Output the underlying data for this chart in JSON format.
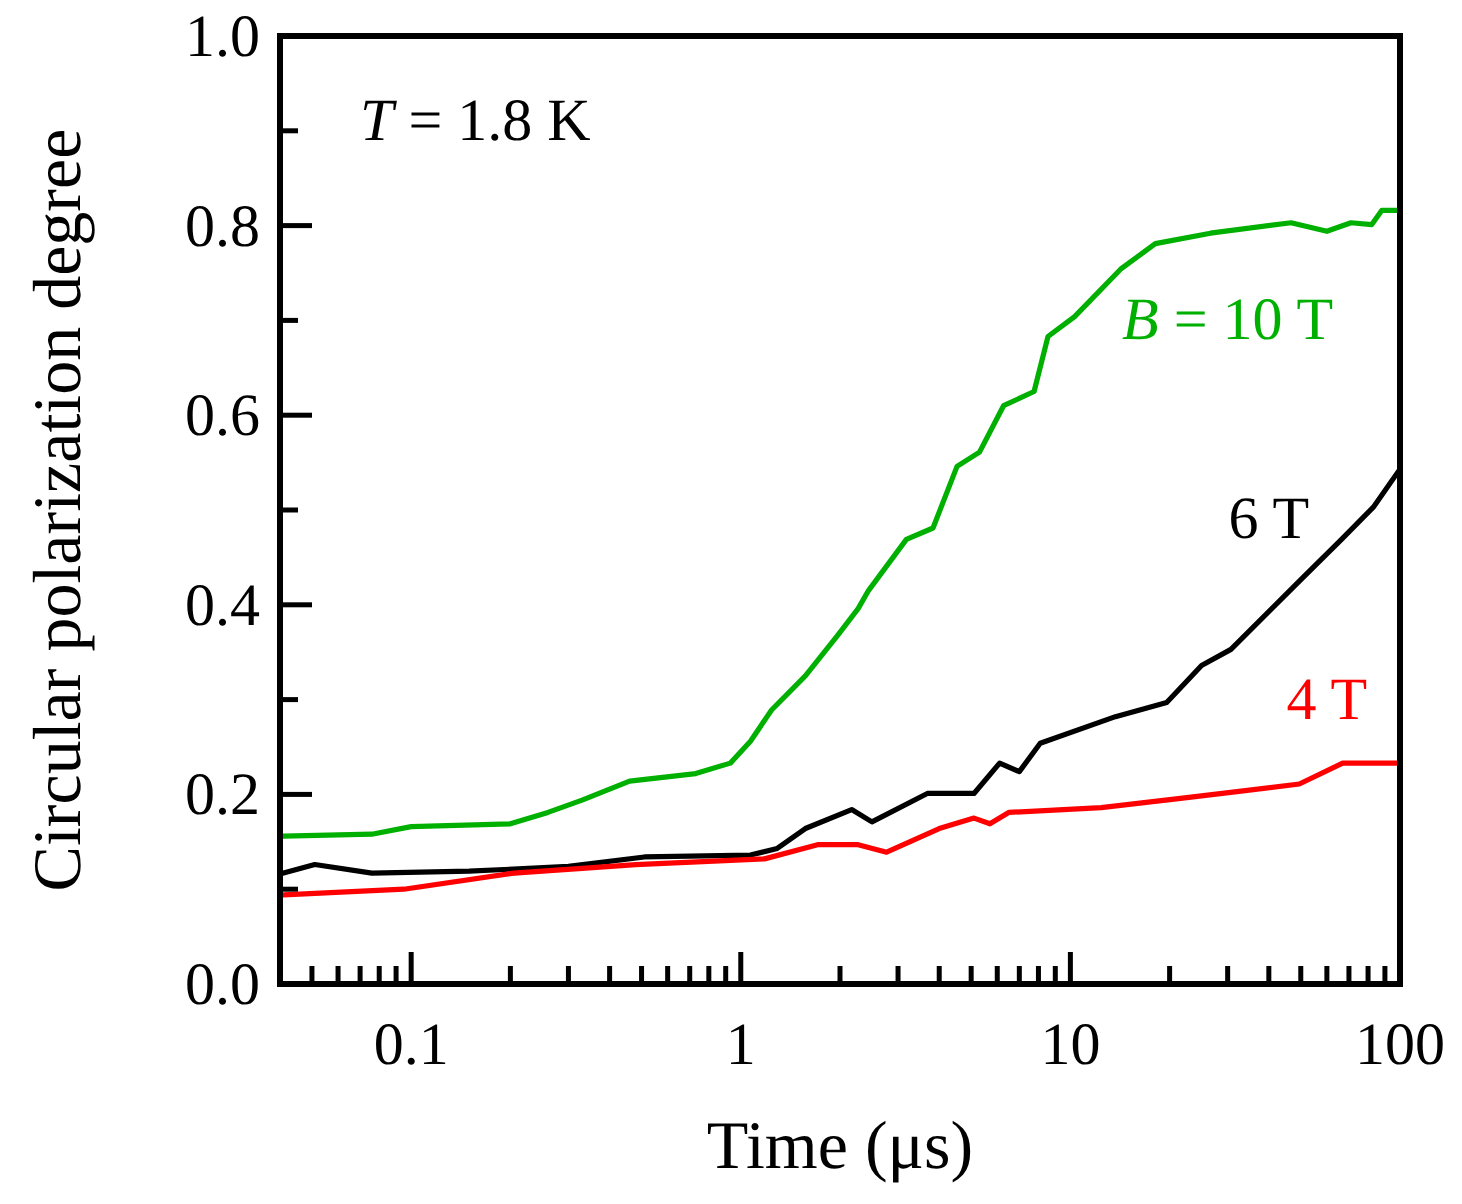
{
  "chart_data": {
    "type": "line",
    "xlabel": "Time (μs)",
    "ylabel": "Circular polarization degree",
    "log": "x",
    "xlim": [
      0.04,
      100
    ],
    "ylim": [
      0,
      1
    ],
    "xticks": [
      {
        "value": 0.04,
        "label": null
      },
      {
        "value": 0.05,
        "label": null
      },
      {
        "value": 0.06,
        "label": null
      },
      {
        "value": 0.07,
        "label": null
      },
      {
        "value": 0.08,
        "label": null
      },
      {
        "value": 0.09,
        "label": null
      },
      {
        "value": 0.1,
        "label": "0.1"
      },
      {
        "value": 0.2,
        "label": null
      },
      {
        "value": 0.3,
        "label": null
      },
      {
        "value": 0.4,
        "label": null
      },
      {
        "value": 0.5,
        "label": null
      },
      {
        "value": 0.6,
        "label": null
      },
      {
        "value": 0.7,
        "label": null
      },
      {
        "value": 0.8,
        "label": null
      },
      {
        "value": 0.9,
        "label": null
      },
      1,
      {
        "value": 2,
        "label": null
      },
      {
        "value": 3,
        "label": null
      },
      {
        "value": 4,
        "label": null
      },
      {
        "value": 5,
        "label": null
      },
      {
        "value": 6,
        "label": null
      },
      {
        "value": 7,
        "label": null
      },
      {
        "value": 8,
        "label": null
      },
      {
        "value": 9,
        "label": null
      },
      10,
      {
        "value": 20,
        "label": null
      },
      {
        "value": 30,
        "label": null
      },
      {
        "value": 40,
        "label": null
      },
      {
        "value": 50,
        "label": null
      },
      {
        "value": 60,
        "label": null
      },
      {
        "value": 70,
        "label": null
      },
      {
        "value": 80,
        "label": null
      },
      {
        "value": 90,
        "label": null
      },
      100
    ],
    "yticks": [
      {
        "value": 0,
        "label": "0.0"
      },
      {
        "value": 0.1,
        "label": null
      },
      {
        "value": 0.2,
        "label": "0.2"
      },
      {
        "value": 0.3,
        "label": null
      },
      {
        "value": 0.4,
        "label": "0.4"
      },
      {
        "value": 0.5,
        "label": null
      },
      {
        "value": 0.6,
        "label": "0.6"
      },
      {
        "value": 0.7,
        "label": null
      },
      {
        "value": 0.8,
        "label": "0.8"
      },
      {
        "value": 0.9,
        "label": null
      },
      {
        "value": 1,
        "label": "1.0"
      }
    ],
    "grid": false,
    "legend": false,
    "marker": "none",
    "line_style": "solid",
    "annotations": [
      "T = 1.8 K"
    ],
    "series": [
      {
        "name": "B = 10 T",
        "color": "#00b000",
        "x": [
          0.041,
          0.076,
          0.1,
          0.2,
          0.26,
          0.33,
          0.46,
          0.73,
          0.93,
          1.07,
          1.24,
          1.57,
          1.97,
          2.27,
          2.44,
          3.18,
          3.83,
          4.53,
          5.3,
          6.27,
          7.76,
          8.55,
          10.3,
          14.2,
          18.1,
          26.6,
          46.7,
          60,
          71,
          82,
          88,
          99
        ],
        "values": [
          0.156,
          0.158,
          0.166,
          0.169,
          0.181,
          0.194,
          0.214,
          0.222,
          0.233,
          0.256,
          0.289,
          0.325,
          0.368,
          0.396,
          0.415,
          0.469,
          0.481,
          0.546,
          0.561,
          0.61,
          0.625,
          0.683,
          0.704,
          0.754,
          0.781,
          0.792,
          0.803,
          0.794,
          0.803,
          0.801,
          0.816,
          0.816
        ]
      },
      {
        "name": "6 T",
        "color": "#000000",
        "x": [
          0.041,
          0.051,
          0.076,
          0.15,
          0.3,
          0.51,
          1.07,
          1.29,
          1.57,
          2.17,
          2.5,
          3.68,
          5.1,
          6.1,
          7,
          8.1,
          13.7,
          19.6,
          25,
          30.7,
          49.5,
          66,
          83,
          99
        ],
        "values": [
          0.117,
          0.126,
          0.117,
          0.119,
          0.124,
          0.134,
          0.136,
          0.143,
          0.164,
          0.184,
          0.171,
          0.201,
          0.201,
          0.233,
          0.224,
          0.254,
          0.282,
          0.297,
          0.336,
          0.353,
          0.425,
          0.468,
          0.503,
          0.541
        ]
      },
      {
        "name": "4 T",
        "color": "#ff0000",
        "x": [
          0.041,
          0.095,
          0.205,
          0.48,
          1.18,
          1.71,
          2.27,
          2.77,
          4,
          5.1,
          5.7,
          6.5,
          12.4,
          21.9,
          32,
          49.5,
          67,
          99
        ],
        "values": [
          0.094,
          0.1,
          0.117,
          0.126,
          0.132,
          0.147,
          0.147,
          0.139,
          0.164,
          0.175,
          0.169,
          0.181,
          0.186,
          0.196,
          0.203,
          0.211,
          0.233,
          0.233
        ]
      }
    ]
  }
}
